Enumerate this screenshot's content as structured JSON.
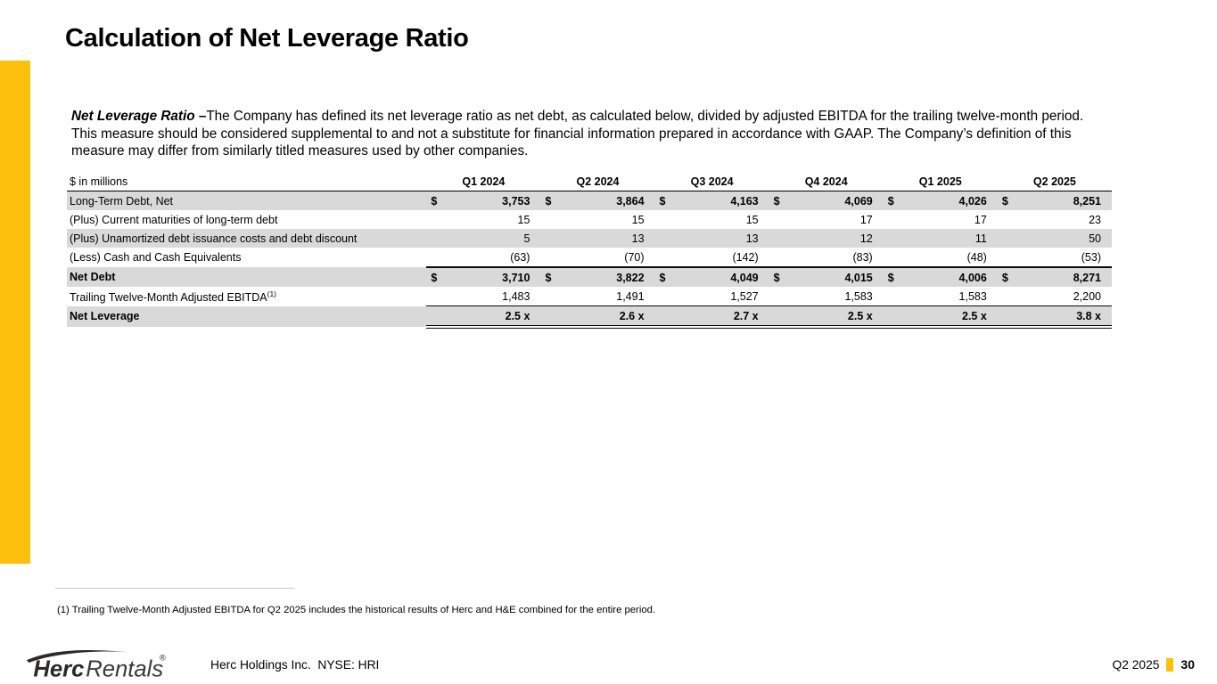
{
  "slide": {
    "title": "Calculation of Net Leverage Ratio",
    "intro": {
      "lead": "Net Leverage Ratio –",
      "body": "The Company has defined its net leverage ratio as net debt, as calculated below, divided by adjusted EBITDA for the trailing twelve-month period.  This measure should be considered supplemental to and not a substitute for financial information prepared in accordance with GAAP. The Company’s definition of this measure may differ from similarly titled measures used by other companies."
    }
  },
  "table": {
    "unit_label": "$ in millions",
    "columns": [
      "Q1 2024",
      "Q2 2024",
      "Q3 2024",
      "Q4 2024",
      "Q1 2025",
      "Q2 2025"
    ],
    "rows": [
      {
        "label": "Long-Term Debt, Net",
        "dollar": "$",
        "values": [
          "3,753",
          "3,864",
          "4,163",
          "4,069",
          "4,026",
          "8,251"
        ],
        "kind": "opening"
      },
      {
        "label": "(Plus) Current maturities of long-term debt",
        "values": [
          "15",
          "15",
          "15",
          "17",
          "17",
          "23"
        ],
        "kind": "add"
      },
      {
        "label": "(Plus) Unamortized debt issuance costs and debt discount",
        "values": [
          "5",
          "13",
          "13",
          "12",
          "11",
          "50"
        ],
        "kind": "add"
      },
      {
        "label": "(Less) Cash and Cash Equivalents",
        "values": [
          "(63)",
          "(70)",
          "(142)",
          "(83)",
          "(48)",
          "(53)"
        ],
        "kind": "less"
      },
      {
        "label": "Net Debt",
        "dollar": "$",
        "values": [
          "3,710",
          "3,822",
          "4,049",
          "4,015",
          "4,006",
          "8,271"
        ],
        "kind": "total"
      },
      {
        "label": "Trailing Twelve-Month Adjusted EBITDA",
        "label_sup": "(1)",
        "values": [
          "1,483",
          "1,491",
          "1,527",
          "1,583",
          "1,583",
          "2,200"
        ],
        "kind": "item"
      },
      {
        "label": "Net Leverage",
        "values": [
          "2.5 x",
          "2.6 x",
          "2.7 x",
          "2.5 x",
          "2.5 x",
          "3.8 x"
        ],
        "kind": "ratio"
      }
    ]
  },
  "footnote": "(1) Trailing Twelve-Month Adjusted EBITDA for Q2 2025 includes the historical results of Herc and H&E combined for the entire period.",
  "footer": {
    "logo": {
      "brand_bold": "Herc",
      "brand_light": "Rentals",
      "registered": "®"
    },
    "company": "Herc Holdings Inc.  NYSE: HRI",
    "period": "Q2 2025",
    "page_number": "30"
  },
  "colors": {
    "brand_yellow": "#FDC10D",
    "row_shade": "#D9D9D9"
  }
}
